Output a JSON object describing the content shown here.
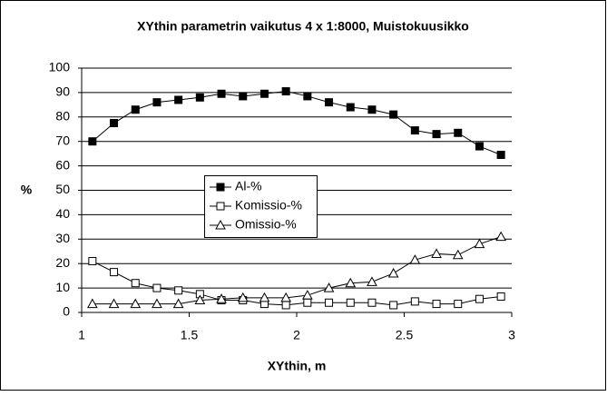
{
  "chart_data": {
    "type": "line",
    "title": "XYthin parametrin vaikutus 4 x 1:8000, Muistokuusikko",
    "x_label": "XYthin, m",
    "y_label": "%",
    "x": [
      1.05,
      1.15,
      1.25,
      1.35,
      1.45,
      1.55,
      1.65,
      1.75,
      1.85,
      1.95,
      2.05,
      2.15,
      2.25,
      2.35,
      2.45,
      2.55,
      2.65,
      2.75,
      2.85,
      2.95
    ],
    "series": [
      {
        "name": "Al-%",
        "color": "#000000",
        "marker": "filled-square",
        "values": [
          70,
          77.5,
          83,
          86,
          87,
          88,
          89.5,
          88.5,
          89.5,
          90.5,
          88.5,
          86,
          84,
          83,
          81,
          74.5,
          73,
          73.5,
          68,
          64.5
        ]
      },
      {
        "name": "Komissio-%",
        "color": "#000000",
        "marker": "open-square",
        "values": [
          21,
          16.5,
          12,
          10,
          9,
          7.5,
          5,
          5,
          3.5,
          3,
          4,
          4,
          4,
          4,
          3,
          4.5,
          3.5,
          3.5,
          5.5,
          6.5
        ]
      },
      {
        "name": "Omissio-%",
        "color": "#000000",
        "marker": "open-triangle",
        "values": [
          3.5,
          3.5,
          3.5,
          3.5,
          3.5,
          5,
          5.5,
          6,
          6,
          6,
          7,
          10,
          12,
          12.5,
          16,
          21.5,
          24,
          23.5,
          28,
          31
        ]
      }
    ],
    "xlim": [
      1,
      3
    ],
    "xticks": [
      1,
      1.5,
      2,
      2.5,
      3
    ],
    "ylim": [
      0,
      100
    ],
    "yticks": [
      0,
      10,
      20,
      30,
      40,
      50,
      60,
      70,
      80,
      90,
      100
    ],
    "grid": true
  }
}
